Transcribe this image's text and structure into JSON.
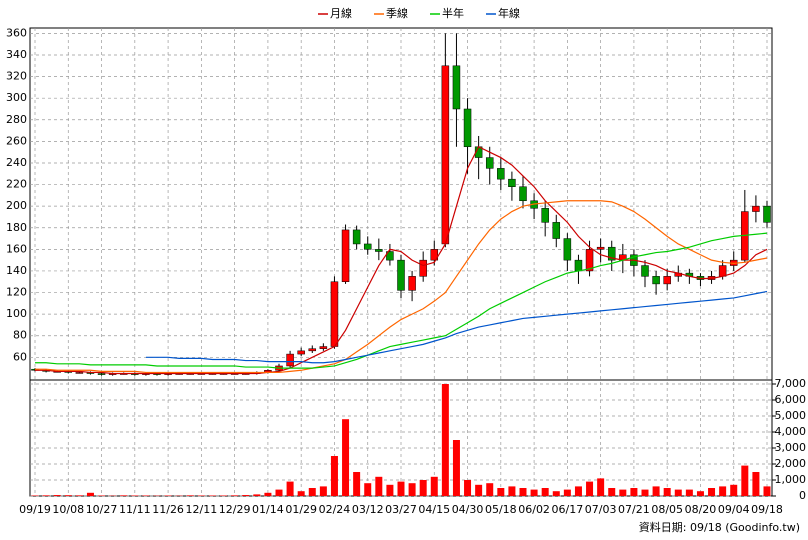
{
  "chart_data": {
    "type": "candlestick",
    "legend": [
      "月線",
      "季線",
      "半年",
      "年線"
    ],
    "footer": "資料日期: 09/18 (Goodinfo.tw)",
    "up_color": "#ff0000",
    "down_color": "#009900",
    "categories": [
      "09/19",
      null,
      null,
      "10/08",
      null,
      null,
      "10/27",
      null,
      null,
      "11/11",
      null,
      null,
      "11/26",
      null,
      null,
      "12/11",
      null,
      null,
      "12/29",
      null,
      null,
      "01/14",
      null,
      null,
      "01/29",
      null,
      null,
      "02/24",
      null,
      null,
      "03/12",
      null,
      null,
      "03/27",
      null,
      null,
      "04/15",
      null,
      null,
      "04/30",
      null,
      null,
      "05/18",
      null,
      null,
      "06/02",
      null,
      null,
      "06/17",
      null,
      null,
      "07/03",
      null,
      null,
      "07/21",
      null,
      null,
      "08/05",
      null,
      null,
      "08/20",
      null,
      null,
      "09/04",
      null,
      null,
      "09/18"
    ],
    "open": [
      49,
      48,
      47,
      47,
      46,
      46,
      45,
      44,
      45,
      45,
      44,
      45,
      44,
      45,
      45,
      45,
      45,
      45,
      45,
      45,
      45,
      46,
      48,
      52,
      63,
      66,
      68,
      70,
      130,
      178,
      165,
      160,
      158,
      150,
      122,
      135,
      150,
      165,
      330,
      290,
      255,
      245,
      235,
      225,
      218,
      205,
      198,
      185,
      170,
      150,
      140,
      160,
      162,
      150,
      155,
      145,
      135,
      128,
      135,
      138,
      135,
      132,
      135,
      145,
      150,
      195,
      200
    ],
    "high": [
      50,
      49,
      48,
      48,
      47,
      47,
      46,
      46,
      46,
      46,
      46,
      46,
      46,
      46,
      46,
      46,
      46,
      46,
      46,
      46,
      47,
      49,
      54,
      66,
      69,
      71,
      73,
      135,
      183,
      182,
      172,
      170,
      165,
      155,
      140,
      158,
      168,
      360,
      360,
      300,
      265,
      255,
      245,
      232,
      228,
      212,
      205,
      192,
      175,
      155,
      168,
      170,
      168,
      165,
      160,
      150,
      140,
      142,
      145,
      142,
      138,
      140,
      150,
      158,
      215,
      210,
      205
    ],
    "low": [
      47,
      46,
      46,
      45,
      45,
      44,
      43,
      43,
      44,
      43,
      43,
      43,
      43,
      44,
      44,
      44,
      44,
      44,
      44,
      44,
      44,
      45,
      46,
      50,
      61,
      64,
      66,
      68,
      128,
      160,
      155,
      150,
      145,
      115,
      112,
      130,
      145,
      162,
      255,
      230,
      225,
      220,
      215,
      205,
      198,
      188,
      172,
      162,
      140,
      128,
      135,
      148,
      140,
      138,
      135,
      125,
      118,
      122,
      130,
      128,
      126,
      128,
      132,
      140,
      148,
      185,
      180
    ],
    "close": [
      48,
      47,
      47,
      46,
      46,
      45,
      44,
      45,
      45,
      44,
      45,
      44,
      45,
      45,
      45,
      45,
      45,
      45,
      45,
      45,
      46,
      48,
      52,
      63,
      66,
      68,
      70,
      130,
      178,
      165,
      160,
      158,
      150,
      122,
      135,
      150,
      160,
      330,
      290,
      255,
      245,
      235,
      225,
      218,
      205,
      198,
      185,
      170,
      150,
      140,
      160,
      162,
      150,
      155,
      145,
      135,
      128,
      135,
      138,
      135,
      132,
      135,
      145,
      150,
      195,
      200,
      185
    ],
    "ylim": [
      39,
      365
    ],
    "yticks": [
      60,
      80,
      100,
      120,
      140,
      160,
      180,
      200,
      220,
      240,
      260,
      280,
      300,
      320,
      340,
      360
    ],
    "series": [
      {
        "name": "月線",
        "color": "#cc0000",
        "values": [
          48,
          48,
          47,
          47,
          47,
          46,
          46,
          45,
          45,
          45,
          45,
          45,
          45,
          45,
          45,
          45,
          45,
          45,
          45,
          45,
          45,
          46,
          47,
          50,
          55,
          60,
          65,
          70,
          85,
          105,
          125,
          145,
          160,
          158,
          150,
          145,
          148,
          165,
          200,
          235,
          255,
          250,
          245,
          238,
          228,
          218,
          205,
          195,
          185,
          172,
          162,
          155,
          152,
          150,
          150,
          148,
          145,
          140,
          138,
          135,
          133,
          133,
          135,
          138,
          145,
          155,
          160
        ]
      },
      {
        "name": "季線",
        "color": "#ff6600",
        "values": [
          49,
          49,
          48,
          48,
          48,
          48,
          47,
          47,
          47,
          47,
          46,
          46,
          46,
          46,
          46,
          46,
          46,
          46,
          46,
          46,
          46,
          46,
          46,
          47,
          48,
          50,
          52,
          54,
          58,
          65,
          72,
          80,
          88,
          95,
          100,
          105,
          112,
          120,
          135,
          150,
          165,
          178,
          188,
          195,
          200,
          202,
          203,
          204,
          205,
          205,
          205,
          205,
          204,
          200,
          195,
          188,
          180,
          172,
          165,
          160,
          155,
          150,
          148,
          147,
          148,
          150,
          152
        ]
      },
      {
        "name": "半年",
        "color": "#00cc00",
        "values": [
          55,
          55,
          54,
          54,
          54,
          53,
          53,
          53,
          53,
          53,
          53,
          52,
          52,
          52,
          52,
          52,
          52,
          52,
          52,
          51,
          51,
          51,
          50,
          50,
          50,
          50,
          51,
          52,
          55,
          58,
          62,
          66,
          70,
          72,
          74,
          76,
          78,
          80,
          86,
          92,
          98,
          105,
          110,
          115,
          120,
          125,
          130,
          134,
          138,
          140,
          142,
          145,
          147,
          150,
          153,
          155,
          157,
          158,
          160,
          162,
          165,
          168,
          170,
          172,
          173,
          174,
          175
        ]
      },
      {
        "name": "年線",
        "color": "#0055cc",
        "values": [
          null,
          null,
          null,
          null,
          null,
          null,
          null,
          null,
          null,
          null,
          60,
          60,
          60,
          59,
          59,
          59,
          58,
          58,
          58,
          57,
          57,
          56,
          56,
          56,
          56,
          55,
          55,
          56,
          58,
          60,
          62,
          64,
          66,
          68,
          70,
          72,
          75,
          78,
          82,
          85,
          88,
          90,
          92,
          94,
          96,
          97,
          98,
          99,
          100,
          101,
          102,
          103,
          104,
          105,
          106,
          107,
          108,
          109,
          110,
          111,
          112,
          113,
          114,
          115,
          117,
          119,
          121
        ]
      }
    ],
    "volume": {
      "color": "#ff0000",
      "values": [
        30,
        40,
        60,
        50,
        40,
        200,
        30,
        20,
        40,
        30,
        30,
        20,
        30,
        20,
        40,
        30,
        30,
        30,
        40,
        60,
        100,
        200,
        400,
        900,
        300,
        500,
        600,
        2500,
        4800,
        1500,
        800,
        1200,
        700,
        900,
        800,
        1000,
        1200,
        7000,
        3500,
        1000,
        700,
        800,
        500,
        600,
        500,
        400,
        500,
        300,
        400,
        600,
        900,
        1100,
        500,
        400,
        500,
        400,
        600,
        500,
        400,
        400,
        300,
        500,
        600,
        700,
        1900,
        1500,
        600
      ],
      "ylim": [
        0,
        7250
      ],
      "yticks": [
        0,
        {
          "value": 1000,
          "label": "1,000"
        },
        {
          "value": 2000,
          "label": "2,000"
        },
        {
          "value": 3000,
          "label": "3,000"
        },
        {
          "value": 4000,
          "label": "4,000"
        },
        {
          "value": 5000,
          "label": "5,000"
        },
        {
          "value": 6000,
          "label": "6,000"
        },
        {
          "value": 7000,
          "label": "7,000"
        }
      ]
    },
    "grid": true
  }
}
